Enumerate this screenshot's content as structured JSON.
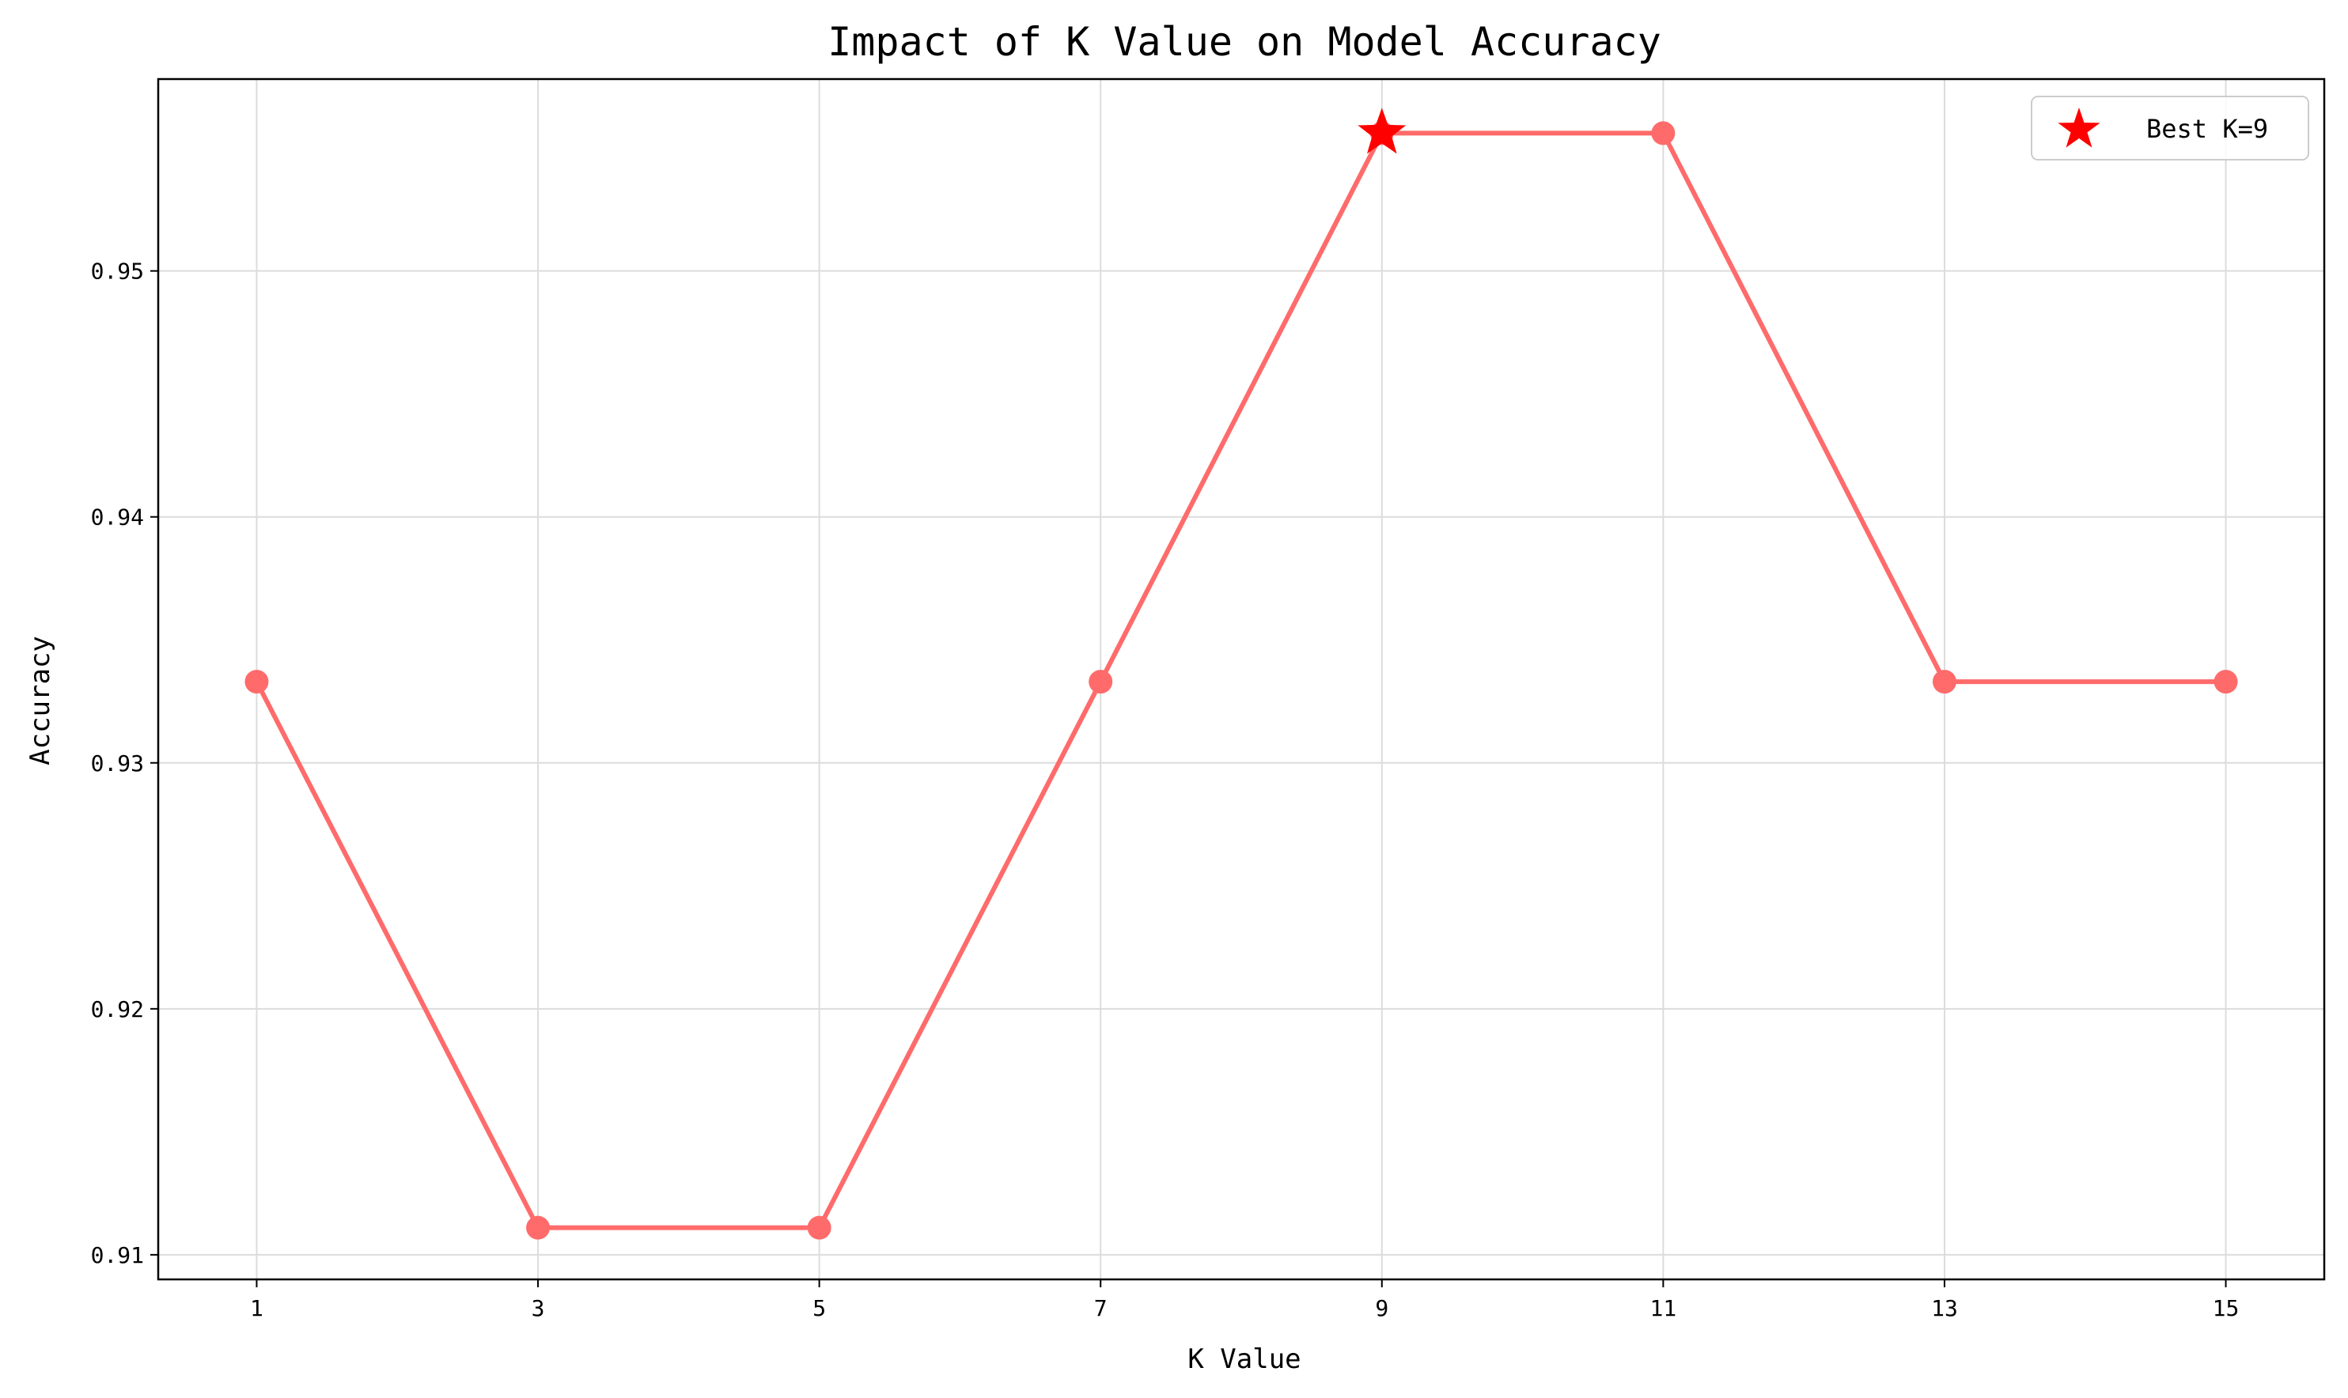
{
  "chart_data": {
    "type": "line",
    "title": "Impact of K Value on Model Accuracy",
    "xlabel": "K Value",
    "ylabel": "Accuracy",
    "x": [
      1,
      3,
      5,
      7,
      9,
      11,
      13,
      15
    ],
    "xticks": [
      "1",
      "3",
      "5",
      "7",
      "9",
      "11",
      "13",
      "15"
    ],
    "yticks": [
      0.91,
      0.92,
      0.93,
      0.94,
      0.95
    ],
    "ytick_labels": [
      "0.91",
      "0.92",
      "0.93",
      "0.94",
      "0.95"
    ],
    "xlim": [
      0.3,
      15.7
    ],
    "ylim": [
      0.909,
      0.9578
    ],
    "grid": true,
    "legend_position": "top-right",
    "series": [
      {
        "values": [
          0.9333,
          0.9111,
          0.9111,
          0.9333,
          0.9556,
          0.9556,
          0.9333,
          0.9333
        ],
        "color": "#ff6b6b",
        "marker": "circle"
      }
    ],
    "best_point": {
      "label": "Best K=9",
      "x": 9,
      "y": 0.9556,
      "color": "#ff0000",
      "marker": "star"
    }
  }
}
